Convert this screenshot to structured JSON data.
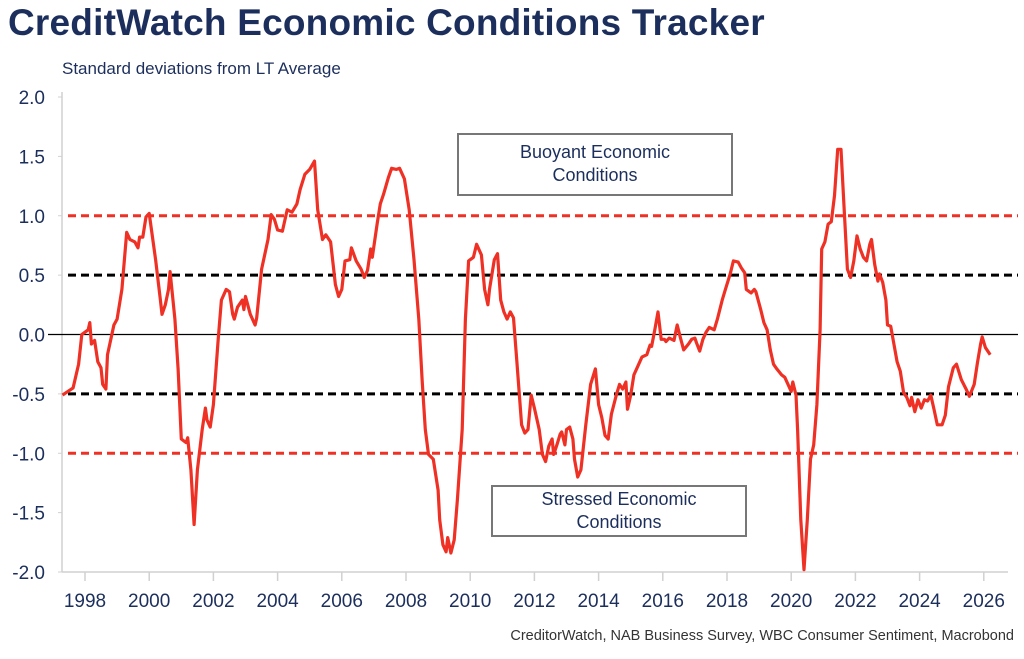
{
  "header": {
    "title": "CreditWatch Economic Conditions Tracker",
    "subtitle": "Standard deviations from LT Average",
    "source": "CreditorWatch, NAB Business Survey, WBC Consumer Sentiment, Macrobond"
  },
  "chart_data": {
    "type": "line",
    "title": "CreditorWatch Economic Conditions Tracker",
    "ylabel": "Standard deviations from LT Average",
    "xlabel": "",
    "ylim": [
      -2.0,
      2.0
    ],
    "xlim": [
      1997.3,
      2026.7
    ],
    "grid": false,
    "y_ticks": [
      "2.0",
      "1.5",
      "1.0",
      "0.5",
      "0.0",
      "-0.5",
      "-1.0",
      "-1.5",
      "-2.0"
    ],
    "x_ticks": [
      "1998",
      "2000",
      "2002",
      "2004",
      "2006",
      "2008",
      "2010",
      "2012",
      "2014",
      "2016",
      "2018",
      "2020",
      "2022",
      "2024",
      "2026"
    ],
    "reference_lines": [
      {
        "y": 1.0,
        "style": "dashed",
        "color": "#ee3124"
      },
      {
        "y": 0.5,
        "style": "dashed",
        "color": "#000000"
      },
      {
        "y": 0.0,
        "style": "solid",
        "color": "#000000"
      },
      {
        "y": -0.5,
        "style": "dashed",
        "color": "#000000"
      },
      {
        "y": -1.0,
        "style": "dashed",
        "color": "#ee3124"
      }
    ],
    "annotations": {
      "buoyant": [
        "Buoyant Economic",
        "Conditions"
      ],
      "stressed": [
        "Stressed Economic",
        "Conditions"
      ]
    },
    "series": [
      {
        "name": "Economic Conditions Tracker",
        "color": "#ee3124",
        "points": [
          [
            1997.3,
            -0.51
          ],
          [
            1997.63,
            -0.45
          ],
          [
            1997.8,
            -0.25
          ],
          [
            1997.9,
            0.0
          ],
          [
            1998.1,
            0.04
          ],
          [
            1998.15,
            0.1
          ],
          [
            1998.2,
            -0.08
          ],
          [
            1998.3,
            -0.05
          ],
          [
            1998.4,
            -0.23
          ],
          [
            1998.5,
            -0.28
          ],
          [
            1998.55,
            -0.42
          ],
          [
            1998.65,
            -0.46
          ],
          [
            1998.7,
            -0.17
          ],
          [
            1998.9,
            0.08
          ],
          [
            1999.0,
            0.13
          ],
          [
            1999.15,
            0.38
          ],
          [
            1999.3,
            0.86
          ],
          [
            1999.4,
            0.8
          ],
          [
            1999.55,
            0.78
          ],
          [
            1999.65,
            0.73
          ],
          [
            1999.7,
            0.82
          ],
          [
            1999.8,
            0.82
          ],
          [
            1999.9,
            0.99
          ],
          [
            2000.0,
            1.02
          ],
          [
            2000.2,
            0.63
          ],
          [
            2000.35,
            0.29
          ],
          [
            2000.4,
            0.17
          ],
          [
            2000.5,
            0.25
          ],
          [
            2000.6,
            0.38
          ],
          [
            2000.65,
            0.53
          ],
          [
            2000.8,
            0.13
          ],
          [
            2000.9,
            -0.29
          ],
          [
            2001.0,
            -0.88
          ],
          [
            2001.15,
            -0.91
          ],
          [
            2001.2,
            -0.87
          ],
          [
            2001.3,
            -1.14
          ],
          [
            2001.4,
            -1.6
          ],
          [
            2001.5,
            -1.14
          ],
          [
            2001.65,
            -0.8
          ],
          [
            2001.75,
            -0.62
          ],
          [
            2001.8,
            -0.72
          ],
          [
            2001.9,
            -0.78
          ],
          [
            2002.0,
            -0.59
          ],
          [
            2002.15,
            -0.04
          ],
          [
            2002.25,
            0.29
          ],
          [
            2002.4,
            0.38
          ],
          [
            2002.5,
            0.36
          ],
          [
            2002.6,
            0.17
          ],
          [
            2002.65,
            0.13
          ],
          [
            2002.75,
            0.23
          ],
          [
            2002.9,
            0.29
          ],
          [
            2002.95,
            0.21
          ],
          [
            2003.0,
            0.32
          ],
          [
            2003.15,
            0.17
          ],
          [
            2003.3,
            0.08
          ],
          [
            2003.35,
            0.14
          ],
          [
            2003.5,
            0.55
          ],
          [
            2003.7,
            0.8
          ],
          [
            2003.8,
            1.01
          ],
          [
            2003.9,
            0.97
          ],
          [
            2004.0,
            0.88
          ],
          [
            2004.15,
            0.87
          ],
          [
            2004.3,
            1.05
          ],
          [
            2004.45,
            1.03
          ],
          [
            2004.6,
            1.1
          ],
          [
            2004.7,
            1.22
          ],
          [
            2004.85,
            1.35
          ],
          [
            2005.0,
            1.39
          ],
          [
            2005.15,
            1.46
          ],
          [
            2005.25,
            1.05
          ],
          [
            2005.4,
            0.8
          ],
          [
            2005.5,
            0.84
          ],
          [
            2005.65,
            0.78
          ],
          [
            2005.8,
            0.42
          ],
          [
            2005.9,
            0.32
          ],
          [
            2006.0,
            0.38
          ],
          [
            2006.1,
            0.62
          ],
          [
            2006.25,
            0.63
          ],
          [
            2006.3,
            0.73
          ],
          [
            2006.45,
            0.62
          ],
          [
            2006.6,
            0.55
          ],
          [
            2006.7,
            0.48
          ],
          [
            2006.8,
            0.54
          ],
          [
            2006.9,
            0.72
          ],
          [
            2006.95,
            0.65
          ],
          [
            2007.1,
            0.93
          ],
          [
            2007.2,
            1.1
          ],
          [
            2007.3,
            1.18
          ],
          [
            2007.45,
            1.32
          ],
          [
            2007.55,
            1.4
          ],
          [
            2007.7,
            1.39
          ],
          [
            2007.8,
            1.4
          ],
          [
            2007.95,
            1.31
          ],
          [
            2008.1,
            1.05
          ],
          [
            2008.25,
            0.63
          ],
          [
            2008.4,
            0.13
          ],
          [
            2008.5,
            -0.38
          ],
          [
            2008.6,
            -0.8
          ],
          [
            2008.7,
            -1.01
          ],
          [
            2008.85,
            -1.05
          ],
          [
            2009.0,
            -1.31
          ],
          [
            2009.05,
            -1.56
          ],
          [
            2009.15,
            -1.77
          ],
          [
            2009.25,
            -1.83
          ],
          [
            2009.3,
            -1.71
          ],
          [
            2009.4,
            -1.84
          ],
          [
            2009.5,
            -1.73
          ],
          [
            2009.6,
            -1.39
          ],
          [
            2009.75,
            -0.8
          ],
          [
            2009.85,
            0.13
          ],
          [
            2009.95,
            0.62
          ],
          [
            2010.1,
            0.65
          ],
          [
            2010.2,
            0.76
          ],
          [
            2010.35,
            0.67
          ],
          [
            2010.45,
            0.38
          ],
          [
            2010.55,
            0.25
          ],
          [
            2010.6,
            0.38
          ],
          [
            2010.75,
            0.63
          ],
          [
            2010.85,
            0.68
          ],
          [
            2010.95,
            0.29
          ],
          [
            2011.05,
            0.19
          ],
          [
            2011.15,
            0.13
          ],
          [
            2011.25,
            0.19
          ],
          [
            2011.35,
            0.14
          ],
          [
            2011.45,
            -0.21
          ],
          [
            2011.6,
            -0.76
          ],
          [
            2011.7,
            -0.83
          ],
          [
            2011.8,
            -0.8
          ],
          [
            2011.9,
            -0.51
          ],
          [
            2012.0,
            -0.62
          ],
          [
            2012.15,
            -0.8
          ],
          [
            2012.25,
            -1.01
          ],
          [
            2012.35,
            -1.07
          ],
          [
            2012.45,
            -0.94
          ],
          [
            2012.55,
            -0.88
          ],
          [
            2012.6,
            -1.01
          ],
          [
            2012.7,
            -0.93
          ],
          [
            2012.8,
            -0.84
          ],
          [
            2012.85,
            -0.82
          ],
          [
            2012.95,
            -0.93
          ],
          [
            2013.0,
            -0.8
          ],
          [
            2013.1,
            -0.78
          ],
          [
            2013.2,
            -0.88
          ],
          [
            2013.25,
            -1.05
          ],
          [
            2013.35,
            -1.2
          ],
          [
            2013.45,
            -1.14
          ],
          [
            2013.6,
            -0.76
          ],
          [
            2013.75,
            -0.42
          ],
          [
            2013.9,
            -0.29
          ],
          [
            2014.0,
            -0.59
          ],
          [
            2014.1,
            -0.7
          ],
          [
            2014.2,
            -0.85
          ],
          [
            2014.3,
            -0.88
          ],
          [
            2014.4,
            -0.67
          ],
          [
            2014.55,
            -0.51
          ],
          [
            2014.65,
            -0.42
          ],
          [
            2014.75,
            -0.46
          ],
          [
            2014.85,
            -0.4
          ],
          [
            2014.9,
            -0.63
          ],
          [
            2015.0,
            -0.51
          ],
          [
            2015.1,
            -0.34
          ],
          [
            2015.2,
            -0.28
          ],
          [
            2015.35,
            -0.19
          ],
          [
            2015.5,
            -0.17
          ],
          [
            2015.6,
            -0.09
          ],
          [
            2015.65,
            -0.1
          ],
          [
            2015.75,
            0.04
          ],
          [
            2015.85,
            0.19
          ],
          [
            2015.95,
            -0.04
          ],
          [
            2016.05,
            -0.04
          ],
          [
            2016.1,
            -0.06
          ],
          [
            2016.2,
            -0.03
          ],
          [
            2016.35,
            -0.05
          ],
          [
            2016.45,
            0.08
          ],
          [
            2016.55,
            -0.03
          ],
          [
            2016.65,
            -0.13
          ],
          [
            2016.8,
            -0.08
          ],
          [
            2016.9,
            -0.04
          ],
          [
            2017.0,
            -0.03
          ],
          [
            2017.05,
            -0.07
          ],
          [
            2017.15,
            -0.14
          ],
          [
            2017.25,
            -0.04
          ],
          [
            2017.35,
            0.02
          ],
          [
            2017.45,
            0.06
          ],
          [
            2017.6,
            0.04
          ],
          [
            2017.7,
            0.13
          ],
          [
            2017.85,
            0.29
          ],
          [
            2017.95,
            0.38
          ],
          [
            2018.1,
            0.51
          ],
          [
            2018.2,
            0.62
          ],
          [
            2018.35,
            0.61
          ],
          [
            2018.45,
            0.56
          ],
          [
            2018.55,
            0.52
          ],
          [
            2018.6,
            0.38
          ],
          [
            2018.75,
            0.35
          ],
          [
            2018.85,
            0.38
          ],
          [
            2018.9,
            0.36
          ],
          [
            2019.05,
            0.21
          ],
          [
            2019.15,
            0.1
          ],
          [
            2019.25,
            0.04
          ],
          [
            2019.35,
            -0.13
          ],
          [
            2019.45,
            -0.25
          ],
          [
            2019.55,
            -0.29
          ],
          [
            2019.7,
            -0.34
          ],
          [
            2019.8,
            -0.36
          ],
          [
            2019.9,
            -0.42
          ],
          [
            2020.0,
            -0.48
          ],
          [
            2020.05,
            -0.4
          ],
          [
            2020.15,
            -0.51
          ],
          [
            2020.2,
            -0.8
          ],
          [
            2020.3,
            -1.56
          ],
          [
            2020.4,
            -1.98
          ],
          [
            2020.5,
            -1.56
          ],
          [
            2020.6,
            -1.05
          ],
          [
            2020.7,
            -0.93
          ],
          [
            2020.8,
            -0.59
          ],
          [
            2020.9,
            0.04
          ],
          [
            2020.95,
            0.72
          ],
          [
            2021.05,
            0.78
          ],
          [
            2021.15,
            0.93
          ],
          [
            2021.25,
            0.95
          ],
          [
            2021.35,
            1.17
          ],
          [
            2021.45,
            1.56
          ],
          [
            2021.55,
            1.56
          ],
          [
            2021.65,
            1.05
          ],
          [
            2021.75,
            0.55
          ],
          [
            2021.85,
            0.48
          ],
          [
            2021.95,
            0.62
          ],
          [
            2022.05,
            0.83
          ],
          [
            2022.15,
            0.72
          ],
          [
            2022.25,
            0.65
          ],
          [
            2022.35,
            0.62
          ],
          [
            2022.45,
            0.76
          ],
          [
            2022.5,
            0.8
          ],
          [
            2022.6,
            0.59
          ],
          [
            2022.7,
            0.45
          ],
          [
            2022.75,
            0.51
          ],
          [
            2022.85,
            0.44
          ],
          [
            2022.95,
            0.29
          ],
          [
            2023.0,
            0.08
          ],
          [
            2023.1,
            0.07
          ],
          [
            2023.2,
            -0.08
          ],
          [
            2023.3,
            -0.23
          ],
          [
            2023.4,
            -0.31
          ],
          [
            2023.5,
            -0.49
          ],
          [
            2023.6,
            -0.53
          ],
          [
            2023.7,
            -0.6
          ],
          [
            2023.75,
            -0.53
          ],
          [
            2023.85,
            -0.65
          ],
          [
            2023.95,
            -0.55
          ],
          [
            2024.05,
            -0.62
          ],
          [
            2024.15,
            -0.55
          ],
          [
            2024.25,
            -0.56
          ],
          [
            2024.35,
            -0.51
          ],
          [
            2024.45,
            -0.63
          ],
          [
            2024.55,
            -0.76
          ],
          [
            2024.7,
            -0.76
          ],
          [
            2024.8,
            -0.68
          ],
          [
            2024.9,
            -0.44
          ],
          [
            2025.05,
            -0.28
          ],
          [
            2025.15,
            -0.25
          ],
          [
            2025.3,
            -0.38
          ],
          [
            2025.45,
            -0.46
          ],
          [
            2025.55,
            -0.52
          ],
          [
            2025.7,
            -0.42
          ],
          [
            2025.8,
            -0.24
          ],
          [
            2025.9,
            -0.08
          ],
          [
            2025.95,
            -0.02
          ],
          [
            2026.05,
            -0.11
          ],
          [
            2026.1,
            -0.13
          ],
          [
            2026.2,
            -0.17
          ]
        ]
      }
    ]
  }
}
